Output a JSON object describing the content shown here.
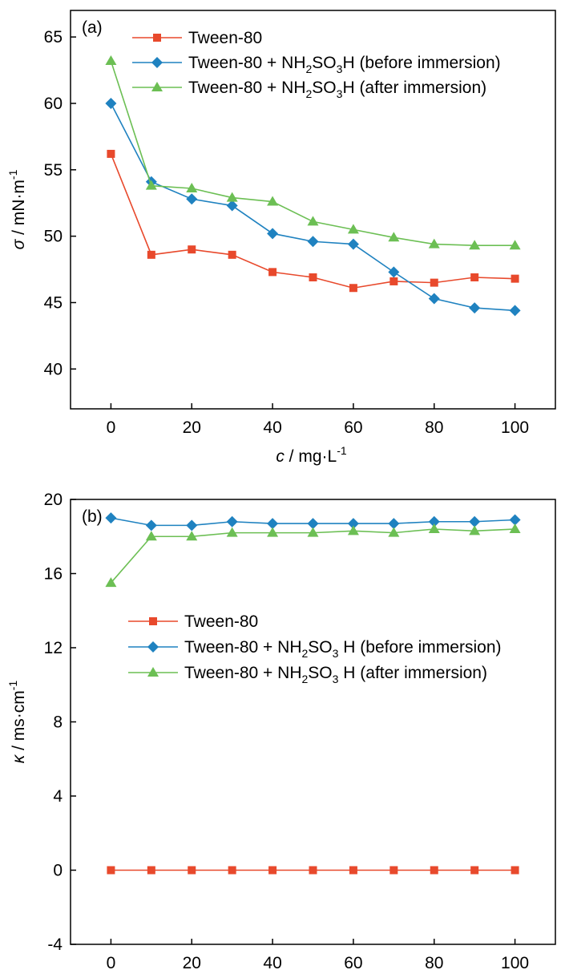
{
  "chart_data": [
    {
      "type": "line",
      "panel_label": "(a)",
      "xlabel": {
        "var": "c",
        "rest": " / mg·L",
        "sup": "-1"
      },
      "ylabel": {
        "var": "σ",
        "rest": " / mN·m",
        "sup": "-1"
      },
      "xlim": [
        -10,
        110
      ],
      "ylim": [
        37,
        67
      ],
      "xticks": [
        0,
        20,
        40,
        60,
        80,
        100
      ],
      "yticks": [
        40,
        45,
        50,
        55,
        60,
        65
      ],
      "grid": false,
      "legend_position": "top",
      "x": [
        0,
        10,
        20,
        30,
        40,
        50,
        60,
        70,
        80,
        90,
        100
      ],
      "series": [
        {
          "name": "Tween-80",
          "legend_parts": [
            [
              "Tween-80",
              ""
            ]
          ],
          "color": "#e8492c",
          "marker": "square",
          "values": [
            56.2,
            48.6,
            49.0,
            48.6,
            47.3,
            46.9,
            46.1,
            46.6,
            46.5,
            46.9,
            46.8
          ]
        },
        {
          "name": "Tween-80 + NH2SO3H (before immersion)",
          "legend_parts": [
            [
              "Tween-80 + NH",
              ""
            ],
            [
              "2",
              "sub"
            ],
            [
              "SO",
              ""
            ],
            [
              "3",
              "sub"
            ],
            [
              "H (before immersion)",
              ""
            ]
          ],
          "color": "#1f82c0",
          "marker": "diamond",
          "values": [
            60.0,
            54.1,
            52.8,
            52.3,
            50.2,
            49.6,
            49.4,
            47.3,
            45.3,
            44.6,
            44.4
          ]
        },
        {
          "name": "Tween-80 + NH2SO3H (after immersion)",
          "legend_parts": [
            [
              "Tween-80 + NH",
              ""
            ],
            [
              "2",
              "sub"
            ],
            [
              "SO",
              ""
            ],
            [
              "3",
              "sub"
            ],
            [
              "H (after immersion)",
              ""
            ]
          ],
          "color": "#6cbf54",
          "marker": "triangle",
          "values": [
            63.2,
            53.8,
            53.6,
            52.9,
            52.6,
            51.1,
            50.5,
            49.9,
            49.4,
            49.3,
            49.3
          ]
        }
      ]
    },
    {
      "type": "line",
      "panel_label": "(b)",
      "xlabel": {
        "var": "c",
        "rest": " / mg·L",
        "sup": "-1"
      },
      "ylabel": {
        "var": "κ",
        "rest": " / ms·cm",
        "sup": "-1"
      },
      "xlim": [
        -10,
        110
      ],
      "ylim": [
        -4,
        20
      ],
      "xticks": [
        0,
        20,
        40,
        60,
        80,
        100
      ],
      "yticks": [
        -4,
        0,
        4,
        8,
        12,
        16,
        20
      ],
      "grid": false,
      "legend_position": "center-left",
      "x": [
        0,
        10,
        20,
        30,
        40,
        50,
        60,
        70,
        80,
        90,
        100
      ],
      "series": [
        {
          "name": "Tween-80",
          "legend_parts": [
            [
              "Tween-80",
              ""
            ]
          ],
          "color": "#e8492c",
          "marker": "square",
          "values": [
            0,
            0,
            0,
            0,
            0,
            0,
            0,
            0,
            0,
            0,
            0
          ]
        },
        {
          "name": "Tween-80 + NH2SO3 H (before immersion)",
          "legend_parts": [
            [
              "Tween-80 + NH",
              ""
            ],
            [
              "2",
              "sub"
            ],
            [
              "SO",
              ""
            ],
            [
              "3",
              "sub"
            ],
            [
              " H (before immersion)",
              ""
            ]
          ],
          "color": "#1f82c0",
          "marker": "diamond",
          "values": [
            19.0,
            18.6,
            18.6,
            18.8,
            18.7,
            18.7,
            18.7,
            18.7,
            18.8,
            18.8,
            18.9
          ]
        },
        {
          "name": "Tween-80 + NH2SO3 H (after immersion)",
          "legend_parts": [
            [
              "Tween-80 + NH",
              ""
            ],
            [
              "2",
              "sub"
            ],
            [
              "SO",
              ""
            ],
            [
              "3",
              "sub"
            ],
            [
              " H (after immersion)",
              ""
            ]
          ],
          "color": "#6cbf54",
          "marker": "triangle",
          "values": [
            15.5,
            18.0,
            18.0,
            18.2,
            18.2,
            18.2,
            18.3,
            18.2,
            18.4,
            18.3,
            18.4
          ]
        }
      ]
    }
  ]
}
